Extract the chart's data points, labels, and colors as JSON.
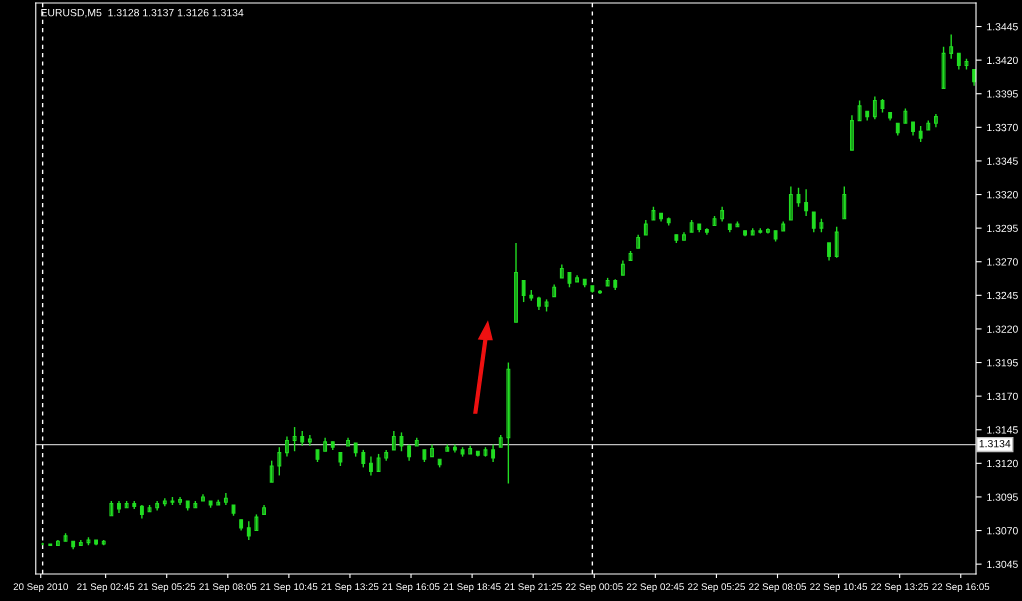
{
  "chart_data": {
    "type": "candlestick",
    "title": "EURUSD,M5  1.3128 1.3137 1.3126 1.3134",
    "x": [
      "2010-09-21T00:00",
      "2010-09-21T00:20",
      "2010-09-21T00:40",
      "2010-09-21T01:00",
      "2010-09-21T01:20",
      "2010-09-21T01:40",
      "2010-09-21T02:00",
      "2010-09-21T02:20",
      "2010-09-21T02:40",
      "2010-09-21T03:00",
      "2010-09-21T03:20",
      "2010-09-21T03:40",
      "2010-09-21T04:00",
      "2010-09-21T04:20",
      "2010-09-21T04:40",
      "2010-09-21T05:00",
      "2010-09-21T05:20",
      "2010-09-21T05:40",
      "2010-09-21T06:00",
      "2010-09-21T06:20",
      "2010-09-21T06:40",
      "2010-09-21T07:00",
      "2010-09-21T07:20",
      "2010-09-21T07:40",
      "2010-09-21T08:00",
      "2010-09-21T08:20",
      "2010-09-21T08:40",
      "2010-09-21T09:00",
      "2010-09-21T09:20",
      "2010-09-21T09:40",
      "2010-09-21T10:00",
      "2010-09-21T10:20",
      "2010-09-21T10:40",
      "2010-09-21T11:00",
      "2010-09-21T11:20",
      "2010-09-21T11:40",
      "2010-09-21T12:00",
      "2010-09-21T12:20",
      "2010-09-21T12:40",
      "2010-09-21T13:00",
      "2010-09-21T13:20",
      "2010-09-21T13:40",
      "2010-09-21T14:00",
      "2010-09-21T14:20",
      "2010-09-21T14:40",
      "2010-09-21T15:00",
      "2010-09-21T15:20",
      "2010-09-21T15:40",
      "2010-09-21T16:00",
      "2010-09-21T16:20",
      "2010-09-21T16:40",
      "2010-09-21T17:00",
      "2010-09-21T17:20",
      "2010-09-21T17:40",
      "2010-09-21T18:00",
      "2010-09-21T18:20",
      "2010-09-21T18:40",
      "2010-09-21T19:00",
      "2010-09-21T19:20",
      "2010-09-21T19:40",
      "2010-09-21T20:00",
      "2010-09-21T20:20",
      "2010-09-21T20:40",
      "2010-09-21T21:00",
      "2010-09-21T21:20",
      "2010-09-21T21:40",
      "2010-09-21T22:00",
      "2010-09-21T22:20",
      "2010-09-21T22:40",
      "2010-09-21T23:00",
      "2010-09-21T23:20",
      "2010-09-21T23:40",
      "2010-09-22T00:00",
      "2010-09-22T00:20",
      "2010-09-22T00:40",
      "2010-09-22T01:00",
      "2010-09-22T01:20",
      "2010-09-22T01:40",
      "2010-09-22T02:00",
      "2010-09-22T02:20",
      "2010-09-22T02:40",
      "2010-09-22T03:00",
      "2010-09-22T03:20",
      "2010-09-22T03:40",
      "2010-09-22T04:00",
      "2010-09-22T04:20",
      "2010-09-22T04:40",
      "2010-09-22T05:00",
      "2010-09-22T05:20",
      "2010-09-22T05:40",
      "2010-09-22T06:00",
      "2010-09-22T06:20",
      "2010-09-22T06:40",
      "2010-09-22T07:00",
      "2010-09-22T07:20",
      "2010-09-22T07:40",
      "2010-09-22T08:00",
      "2010-09-22T08:20",
      "2010-09-22T08:40",
      "2010-09-22T09:00",
      "2010-09-22T09:20",
      "2010-09-22T09:40",
      "2010-09-22T10:00",
      "2010-09-22T10:20",
      "2010-09-22T10:40",
      "2010-09-22T11:00",
      "2010-09-22T11:20",
      "2010-09-22T11:40",
      "2010-09-22T12:00",
      "2010-09-22T12:20",
      "2010-09-22T12:40",
      "2010-09-22T13:00",
      "2010-09-22T13:20",
      "2010-09-22T13:40",
      "2010-09-22T14:00",
      "2010-09-22T14:20",
      "2010-09-22T14:40",
      "2010-09-22T15:00",
      "2010-09-22T15:20",
      "2010-09-22T15:40",
      "2010-09-22T16:00",
      "2010-09-22T16:20",
      "2010-09-22T16:40"
    ],
    "ohlc": [
      [
        1.306,
        1.3061,
        1.3059,
        1.306
      ],
      [
        1.306,
        1.306,
        1.3059,
        1.3059
      ],
      [
        1.3059,
        1.3063,
        1.3059,
        1.3062
      ],
      [
        1.3062,
        1.3068,
        1.3062,
        1.3066
      ],
      [
        1.3062,
        1.3062,
        1.3056,
        1.3058
      ],
      [
        1.3059,
        1.3063,
        1.3059,
        1.3061
      ],
      [
        1.3061,
        1.3065,
        1.3059,
        1.3063
      ],
      [
        1.3063,
        1.3063,
        1.3059,
        1.306
      ],
      [
        1.306,
        1.3063,
        1.3059,
        1.3062
      ],
      [
        1.3081,
        1.3092,
        1.3081,
        1.309
      ],
      [
        1.309,
        1.3092,
        1.3083,
        1.3086
      ],
      [
        1.3087,
        1.3092,
        1.3087,
        1.309
      ],
      [
        1.309,
        1.3092,
        1.3086,
        1.3088
      ],
      [
        1.3088,
        1.3089,
        1.3079,
        1.3082
      ],
      [
        1.3084,
        1.3089,
        1.3084,
        1.3087
      ],
      [
        1.3087,
        1.3092,
        1.3085,
        1.309
      ],
      [
        1.309,
        1.3094,
        1.3088,
        1.3092
      ],
      [
        1.3092,
        1.3095,
        1.3089,
        1.3091
      ],
      [
        1.3091,
        1.3095,
        1.3089,
        1.3093
      ],
      [
        1.3092,
        1.3092,
        1.3085,
        1.3087
      ],
      [
        1.3087,
        1.3092,
        1.3087,
        1.309
      ],
      [
        1.3092,
        1.3097,
        1.3092,
        1.3095
      ],
      [
        1.3092,
        1.3092,
        1.3087,
        1.3089
      ],
      [
        1.3089,
        1.3093,
        1.3089,
        1.3091
      ],
      [
        1.3091,
        1.3098,
        1.3089,
        1.3094
      ],
      [
        1.3089,
        1.3089,
        1.3081,
        1.3083
      ],
      [
        1.3078,
        1.3078,
        1.307,
        1.3072
      ],
      [
        1.3072,
        1.3077,
        1.3063,
        1.3066
      ],
      [
        1.307,
        1.3082,
        1.307,
        1.308
      ],
      [
        1.3082,
        1.3089,
        1.3082,
        1.3087
      ],
      [
        1.3106,
        1.3122,
        1.3106,
        1.3118
      ],
      [
        1.3118,
        1.3132,
        1.3111,
        1.3128
      ],
      [
        1.3128,
        1.314,
        1.3125,
        1.3137
      ],
      [
        1.3137,
        1.3147,
        1.3129,
        1.314
      ],
      [
        1.314,
        1.3144,
        1.3133,
        1.3136
      ],
      [
        1.3136,
        1.3141,
        1.3133,
        1.3138
      ],
      [
        1.313,
        1.313,
        1.3121,
        1.3123
      ],
      [
        1.3129,
        1.3139,
        1.3129,
        1.3136
      ],
      [
        1.3136,
        1.3136,
        1.313,
        1.3132
      ],
      [
        1.3128,
        1.3128,
        1.3118,
        1.3121
      ],
      [
        1.3133,
        1.3139,
        1.3133,
        1.3137
      ],
      [
        1.3135,
        1.3135,
        1.3125,
        1.3128
      ],
      [
        1.3128,
        1.313,
        1.3117,
        1.312
      ],
      [
        1.312,
        1.3125,
        1.3111,
        1.3114
      ],
      [
        1.3114,
        1.3127,
        1.3114,
        1.3124
      ],
      [
        1.3124,
        1.313,
        1.3122,
        1.3128
      ],
      [
        1.313,
        1.3144,
        1.313,
        1.314
      ],
      [
        1.314,
        1.3143,
        1.3129,
        1.3133
      ],
      [
        1.3133,
        1.3134,
        1.3122,
        1.3125
      ],
      [
        1.3133,
        1.3139,
        1.3133,
        1.3137
      ],
      [
        1.313,
        1.313,
        1.3121,
        1.3123
      ],
      [
        1.3125,
        1.3134,
        1.3125,
        1.3131
      ],
      [
        1.3123,
        1.3123,
        1.3117,
        1.3119
      ],
      [
        1.3129,
        1.3134,
        1.3129,
        1.3132
      ],
      [
        1.3132,
        1.3134,
        1.3128,
        1.313
      ],
      [
        1.313,
        1.3132,
        1.3125,
        1.3127
      ],
      [
        1.3127,
        1.3133,
        1.3127,
        1.3131
      ],
      [
        1.3129,
        1.3129,
        1.3125,
        1.3126
      ],
      [
        1.3126,
        1.3132,
        1.3125,
        1.313
      ],
      [
        1.313,
        1.3134,
        1.3121,
        1.3124
      ],
      [
        1.3132,
        1.3141,
        1.3132,
        1.3139
      ],
      [
        1.3139,
        1.3195,
        1.3105,
        1.319
      ],
      [
        1.3225,
        1.3284,
        1.3225,
        1.3262
      ],
      [
        1.3256,
        1.3256,
        1.324,
        1.3245
      ],
      [
        1.3245,
        1.3249,
        1.3241,
        1.3243
      ],
      [
        1.3243,
        1.3244,
        1.3234,
        1.3237
      ],
      [
        1.3237,
        1.3242,
        1.3233,
        1.324
      ],
      [
        1.3244,
        1.3253,
        1.3244,
        1.3251
      ],
      [
        1.3258,
        1.3268,
        1.3258,
        1.3265
      ],
      [
        1.3262,
        1.3262,
        1.3251,
        1.3254
      ],
      [
        1.3255,
        1.326,
        1.3255,
        1.3258
      ],
      [
        1.3257,
        1.3257,
        1.3251,
        1.3253
      ],
      [
        1.3252,
        1.3252,
        1.3247,
        1.3248
      ],
      [
        1.3248,
        1.3249,
        1.3246,
        1.3247
      ],
      [
        1.3252,
        1.3258,
        1.3252,
        1.3256
      ],
      [
        1.3256,
        1.3257,
        1.3249,
        1.3251
      ],
      [
        1.326,
        1.3271,
        1.326,
        1.3268
      ],
      [
        1.3271,
        1.3278,
        1.3271,
        1.3276
      ],
      [
        1.328,
        1.329,
        1.328,
        1.3288
      ],
      [
        1.329,
        1.3301,
        1.329,
        1.3298
      ],
      [
        1.3301,
        1.3311,
        1.3301,
        1.3308
      ],
      [
        1.3306,
        1.3306,
        1.33,
        1.3302
      ],
      [
        1.3302,
        1.3303,
        1.3297,
        1.3299
      ],
      [
        1.329,
        1.329,
        1.3284,
        1.3286
      ],
      [
        1.3286,
        1.3292,
        1.3286,
        1.329
      ],
      [
        1.3292,
        1.3301,
        1.3292,
        1.3299
      ],
      [
        1.3298,
        1.3298,
        1.3292,
        1.3294
      ],
      [
        1.3294,
        1.3295,
        1.329,
        1.3292
      ],
      [
        1.3297,
        1.3304,
        1.3297,
        1.3302
      ],
      [
        1.3302,
        1.3311,
        1.33,
        1.3308
      ],
      [
        1.3298,
        1.3298,
        1.3292,
        1.3294
      ],
      [
        1.3296,
        1.33,
        1.3296,
        1.3298
      ],
      [
        1.3293,
        1.3293,
        1.3289,
        1.329
      ],
      [
        1.329,
        1.3295,
        1.329,
        1.3293
      ],
      [
        1.3293,
        1.3295,
        1.3291,
        1.3292
      ],
      [
        1.3292,
        1.3295,
        1.3291,
        1.3294
      ],
      [
        1.3293,
        1.3293,
        1.3285,
        1.3287
      ],
      [
        1.3293,
        1.33,
        1.3293,
        1.3298
      ],
      [
        1.3301,
        1.3326,
        1.3301,
        1.332
      ],
      [
        1.332,
        1.3325,
        1.3311,
        1.3314
      ],
      [
        1.3314,
        1.3324,
        1.3304,
        1.3308
      ],
      [
        1.3307,
        1.3307,
        1.3292,
        1.3295
      ],
      [
        1.3295,
        1.3302,
        1.3292,
        1.3299
      ],
      [
        1.3284,
        1.3284,
        1.3271,
        1.3274
      ],
      [
        1.3274,
        1.3296,
        1.3273,
        1.3292
      ],
      [
        1.3302,
        1.3326,
        1.3302,
        1.332
      ],
      [
        1.3353,
        1.3379,
        1.3353,
        1.3375
      ],
      [
        1.3375,
        1.339,
        1.3375,
        1.3386
      ],
      [
        1.3382,
        1.3382,
        1.3375,
        1.3378
      ],
      [
        1.3378,
        1.3393,
        1.3376,
        1.339
      ],
      [
        1.339,
        1.3391,
        1.3381,
        1.3384
      ],
      [
        1.3381,
        1.3381,
        1.3375,
        1.3377
      ],
      [
        1.3373,
        1.3373,
        1.3364,
        1.3366
      ],
      [
        1.3373,
        1.3384,
        1.3373,
        1.3382
      ],
      [
        1.3374,
        1.3374,
        1.3364,
        1.3367
      ],
      [
        1.3367,
        1.3371,
        1.3359,
        1.3362
      ],
      [
        1.3368,
        1.3375,
        1.3368,
        1.3373
      ],
      [
        1.3373,
        1.338,
        1.337,
        1.3378
      ],
      [
        1.3399,
        1.343,
        1.3399,
        1.3425
      ],
      [
        1.3425,
        1.3439,
        1.3421,
        1.343
      ],
      [
        1.3425,
        1.3425,
        1.3413,
        1.3416
      ],
      [
        1.3416,
        1.3421,
        1.3413,
        1.3419
      ],
      [
        1.3413,
        1.3413,
        1.3401,
        1.3404
      ]
    ],
    "color": "#22dd22",
    "xlim": [
      "2010-09-20T23:42",
      "2010-09-22T16:45"
    ],
    "xticks": [
      {
        "value": "2010-09-20T23:55",
        "label": "20 Sep 2010"
      },
      {
        "value": "2010-09-21T02:45",
        "label": "21 Sep 02:45"
      },
      {
        "value": "2010-09-21T05:25",
        "label": "21 Sep 05:25"
      },
      {
        "value": "2010-09-21T08:05",
        "label": "21 Sep 08:05"
      },
      {
        "value": "2010-09-21T10:45",
        "label": "21 Sep 10:45"
      },
      {
        "value": "2010-09-21T13:25",
        "label": "21 Sep 13:25"
      },
      {
        "value": "2010-09-21T16:05",
        "label": "21 Sep 16:05"
      },
      {
        "value": "2010-09-21T18:45",
        "label": "21 Sep 18:45"
      },
      {
        "value": "2010-09-21T21:25",
        "label": "21 Sep 21:25"
      },
      {
        "value": "2010-09-22T00:05",
        "label": "22 Sep 00:05"
      },
      {
        "value": "2010-09-22T02:45",
        "label": "22 Sep 02:45"
      },
      {
        "value": "2010-09-22T05:25",
        "label": "22 Sep 05:25"
      },
      {
        "value": "2010-09-22T08:05",
        "label": "22 Sep 08:05"
      },
      {
        "value": "2010-09-22T10:45",
        "label": "22 Sep 10:45"
      },
      {
        "value": "2010-09-22T13:25",
        "label": "22 Sep 13:25"
      },
      {
        "value": "2010-09-22T16:05",
        "label": "22 Sep 16:05"
      }
    ],
    "ylim": [
      1.30377,
      1.34625
    ],
    "yticks": [
      1.3045,
      {
        "value": 1.307,
        "label": "1.3070"
      },
      1.3095,
      {
        "value": 1.312,
        "label": "1.3120"
      },
      1.3145,
      {
        "value": 1.317,
        "label": "1.3170"
      },
      1.3195,
      {
        "value": 1.322,
        "label": "1.3220"
      },
      1.3245,
      {
        "value": 1.327,
        "label": "1.3270"
      },
      1.3295,
      {
        "value": 1.332,
        "label": "1.3320"
      },
      1.3345,
      {
        "value": 1.337,
        "label": "1.3370"
      },
      1.3395,
      {
        "value": 1.342,
        "label": "1.3420"
      },
      1.3445
    ],
    "ref_lines": [
      {
        "axis": "y",
        "value": 1.3134,
        "label": "1.3134",
        "color": "#c0c0c0",
        "line_style": "solid"
      },
      {
        "axis": "x",
        "value": "2010-09-21T00:00",
        "color": "#ffffff",
        "line_style": "dashed"
      },
      {
        "axis": "x",
        "value": "2010-09-22T00:00",
        "color": "#ffffff",
        "line_style": "dashed"
      }
    ],
    "grid": false,
    "legend": false
  }
}
